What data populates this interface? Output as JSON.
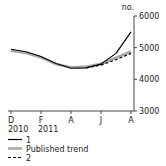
{
  "chart_data": {
    "type": "line",
    "title": "no.",
    "categories": [
      "D",
      null,
      "F",
      null,
      "A",
      null,
      "J",
      null,
      "A"
    ],
    "series": [
      {
        "name": "1",
        "color": "#000000",
        "line_style": "solid",
        "values": [
          4950,
          4870,
          4720,
          4500,
          4350,
          4360,
          4480,
          4820,
          5500
        ]
      },
      {
        "name": "Published trend",
        "color": "#aaaaaa",
        "line_style": "solid",
        "values": [
          4900,
          4830,
          4690,
          4480,
          4380,
          4400,
          4490,
          4680,
          4880
        ]
      },
      {
        "name": "2",
        "color": "#000000",
        "line_style": "dashed",
        "values": [
          null,
          null,
          null,
          null,
          null,
          4360,
          4450,
          4620,
          4820
        ]
      }
    ],
    "ylim": [
      3000,
      6000
    ],
    "yticks": [
      3000,
      4000,
      5000,
      6000
    ],
    "annotations": [
      {
        "text": "2010",
        "x": 0
      },
      {
        "text": "2011",
        "x": 2
      }
    ],
    "legend": "bottom",
    "grid": false
  }
}
